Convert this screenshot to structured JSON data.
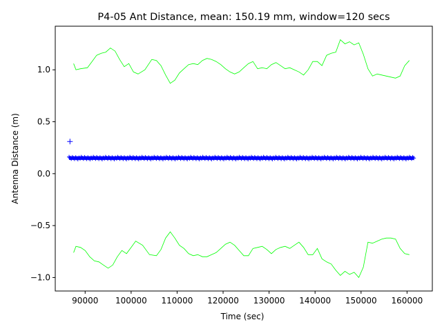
{
  "chart_data": {
    "type": "scatter",
    "title": "P4-05 Ant Distance, mean: 150.19 mm, window=120 secs",
    "xlabel": "Time (sec)",
    "ylabel": "Antenna Distance (m)",
    "xlim": [
      83500,
      165500
    ],
    "ylim": [
      -1.13,
      1.42
    ],
    "xticks": [
      90000,
      100000,
      110000,
      120000,
      130000,
      140000,
      150000,
      160000
    ],
    "xtick_labels": [
      "90000",
      "100000",
      "110000",
      "120000",
      "130000",
      "140000",
      "150000",
      "160000"
    ],
    "yticks": [
      -1.0,
      -0.5,
      0.0,
      0.5,
      1.0
    ],
    "ytick_labels": [
      "−1.0",
      "−0.5",
      "0.0",
      "0.5",
      "1.0"
    ],
    "grid": false,
    "colors": {
      "upper": "#00ff00",
      "lower": "#00ff00",
      "data": "#0000ff"
    },
    "series": [
      {
        "kind": "line",
        "x": [
          87500,
          88000,
          89000,
          90500,
          91500,
          92500,
          93500,
          94500,
          95500,
          96500,
          97500,
          98500,
          99500,
          100500,
          101500,
          103000,
          104500,
          105500,
          106500,
          107500,
          108500,
          109500,
          110500,
          111500,
          112500,
          113500,
          114500,
          115500,
          116500,
          117500,
          118500,
          119500,
          120500,
          121500,
          122500,
          123500,
          124500,
          125500,
          126500,
          127500,
          128500,
          129500,
          130500,
          131500,
          132500,
          133500,
          134500,
          135500,
          136500,
          137500,
          138500,
          139500,
          140500,
          141500,
          142500,
          143500,
          144500,
          145500,
          146500,
          147500,
          148500,
          149500,
          150500,
          151500,
          152500,
          153500,
          154500,
          155500,
          156500,
          157500,
          158500,
          159500,
          160500
        ],
        "y": [
          1.06,
          1.0,
          1.01,
          1.02,
          1.08,
          1.14,
          1.16,
          1.17,
          1.21,
          1.18,
          1.1,
          1.03,
          1.06,
          0.98,
          0.96,
          1.0,
          1.1,
          1.09,
          1.04,
          0.95,
          0.87,
          0.9,
          0.97,
          1.01,
          1.05,
          1.06,
          1.05,
          1.09,
          1.11,
          1.1,
          1.08,
          1.05,
          1.01,
          0.98,
          0.96,
          0.98,
          1.02,
          1.06,
          1.08,
          1.01,
          1.02,
          1.01,
          1.05,
          1.07,
          1.04,
          1.01,
          1.02,
          1.0,
          0.98,
          0.95,
          1.0,
          1.08,
          1.08,
          1.04,
          1.14,
          1.16,
          1.17,
          1.29,
          1.25,
          1.27,
          1.24,
          1.26,
          1.15,
          1.01,
          0.94,
          0.96,
          0.95,
          0.94,
          0.93,
          0.92,
          0.94,
          1.04,
          1.09
        ]
      },
      {
        "kind": "line",
        "x": [
          87500,
          88000,
          89000,
          90000,
          91000,
          92000,
          93000,
          94000,
          95000,
          96000,
          97000,
          98000,
          99000,
          100000,
          101000,
          102500,
          104000,
          105500,
          106500,
          107500,
          108500,
          109500,
          110500,
          111500,
          112500,
          113500,
          114500,
          115500,
          116500,
          117500,
          118500,
          119500,
          120500,
          121500,
          122500,
          123500,
          124500,
          125500,
          126500,
          127500,
          128500,
          129500,
          130500,
          131500,
          132500,
          133500,
          134500,
          135500,
          136500,
          137500,
          138500,
          139500,
          140500,
          141500,
          142500,
          143500,
          144500,
          145500,
          146500,
          147500,
          148500,
          149500,
          150500,
          151500,
          152500,
          153500,
          154500,
          155500,
          156500,
          157500,
          158500,
          159500,
          160500
        ],
        "y": [
          -0.76,
          -0.7,
          -0.71,
          -0.74,
          -0.8,
          -0.84,
          -0.85,
          -0.88,
          -0.91,
          -0.88,
          -0.8,
          -0.74,
          -0.77,
          -0.71,
          -0.65,
          -0.69,
          -0.78,
          -0.79,
          -0.73,
          -0.62,
          -0.56,
          -0.62,
          -0.69,
          -0.72,
          -0.77,
          -0.79,
          -0.78,
          -0.8,
          -0.8,
          -0.78,
          -0.76,
          -0.72,
          -0.68,
          -0.66,
          -0.69,
          -0.74,
          -0.79,
          -0.79,
          -0.72,
          -0.71,
          -0.7,
          -0.73,
          -0.77,
          -0.73,
          -0.71,
          -0.7,
          -0.72,
          -0.69,
          -0.66,
          -0.71,
          -0.78,
          -0.78,
          -0.72,
          -0.82,
          -0.85,
          -0.87,
          -0.93,
          -0.98,
          -0.94,
          -0.97,
          -0.95,
          -1.0,
          -0.9,
          -0.66,
          -0.67,
          -0.65,
          -0.63,
          -0.62,
          -0.62,
          -0.63,
          -0.72,
          -0.77,
          -0.78
        ]
      },
      {
        "kind": "scatter",
        "marker": "+",
        "x_start": 86500,
        "x_end": 161500,
        "y_center": 0.15,
        "y_band": 0.018,
        "outliers": [
          {
            "x": 86700,
            "y": 0.31
          }
        ]
      }
    ]
  }
}
